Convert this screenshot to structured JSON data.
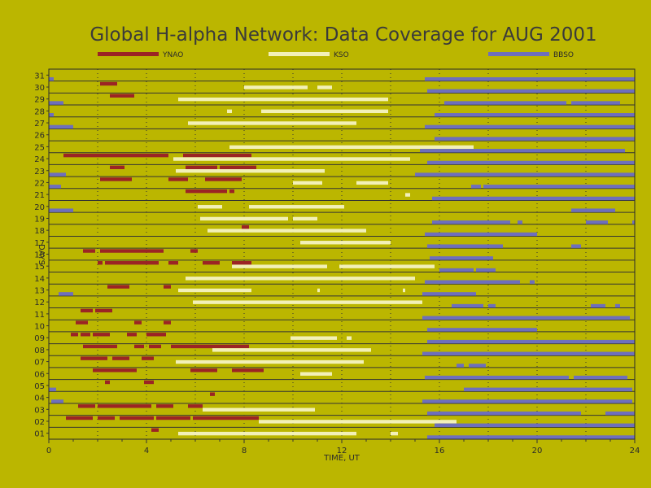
{
  "chart_data": {
    "type": "bar",
    "title": "Global H-alpha Network: Data Coverage for AUG 2001",
    "xlabel": "TIME, UT",
    "ylabel": "DAYS",
    "xlim": [
      0,
      24
    ],
    "ylim": [
      1,
      31
    ],
    "x_ticks": [
      0,
      4,
      8,
      12,
      16,
      20,
      24
    ],
    "y_ticks": [
      "01",
      "02",
      "03",
      "04",
      "05",
      "06",
      "07",
      "08",
      "09",
      "10",
      "11",
      "12",
      "13",
      "14",
      "15",
      "16",
      "17",
      "18",
      "19",
      "20",
      "21",
      "22",
      "23",
      "24",
      "25",
      "26",
      "27",
      "28",
      "29",
      "30",
      "31"
    ],
    "grid": true,
    "legend_position": "top",
    "series": [
      {
        "name": "YNAO",
        "color": "#9b2424",
        "intervals": {
          "01": [
            [
              4.2,
              4.5
            ]
          ],
          "02": [
            [
              0.7,
              1.0
            ],
            [
              1.0,
              1.8
            ],
            [
              2.0,
              2.7
            ],
            [
              2.9,
              4.3
            ],
            [
              4.4,
              5.8
            ],
            [
              5.9,
              8.6
            ]
          ],
          "03": [
            [
              1.2,
              1.9
            ],
            [
              2.0,
              4.2
            ],
            [
              4.4,
              5.1
            ],
            [
              5.7,
              6.3
            ]
          ],
          "04": [
            [
              6.6,
              6.8
            ]
          ],
          "05": [
            [
              2.3,
              2.5
            ],
            [
              3.9,
              4.3
            ]
          ],
          "06": [
            [
              1.8,
              3.6
            ],
            [
              5.8,
              6.9
            ],
            [
              7.5,
              8.8
            ]
          ],
          "07": [
            [
              1.3,
              2.4
            ],
            [
              2.6,
              3.3
            ],
            [
              3.8,
              4.3
            ]
          ],
          "08": [
            [
              1.4,
              2.8
            ],
            [
              3.5,
              3.9
            ],
            [
              4.1,
              4.6
            ],
            [
              5.0,
              8.2
            ]
          ],
          "09": [
            [
              0.9,
              1.2
            ],
            [
              1.3,
              1.7
            ],
            [
              1.8,
              2.5
            ],
            [
              3.2,
              3.6
            ],
            [
              4.0,
              4.8
            ]
          ],
          "10": [
            [
              1.1,
              1.6
            ],
            [
              3.5,
              3.8
            ],
            [
              4.7,
              5.0
            ]
          ],
          "11": [
            [
              1.3,
              1.8
            ],
            [
              1.9,
              2.6
            ]
          ],
          "13": [
            [
              2.4,
              3.3
            ],
            [
              4.7,
              5.0
            ]
          ],
          "15": [
            [
              2.0,
              2.2
            ],
            [
              2.3,
              4.5
            ],
            [
              4.9,
              5.3
            ],
            [
              6.3,
              7.0
            ],
            [
              7.5,
              8.3
            ]
          ],
          "16": [
            [
              1.4,
              1.9
            ],
            [
              2.1,
              4.7
            ],
            [
              5.8,
              6.1
            ]
          ],
          "18": [
            [
              7.9,
              8.2
            ]
          ],
          "21": [
            [
              5.6,
              7.3
            ],
            [
              7.4,
              7.6
            ]
          ],
          "22": [
            [
              2.1,
              3.4
            ],
            [
              4.9,
              5.7
            ],
            [
              6.4,
              7.9
            ]
          ],
          "23": [
            [
              2.5,
              3.1
            ],
            [
              5.6,
              6.9
            ],
            [
              7.0,
              8.5
            ]
          ],
          "24": [
            [
              0.6,
              4.9
            ],
            [
              5.5,
              8.3
            ]
          ],
          "29": [
            [
              2.5,
              3.5
            ]
          ],
          "30": [
            [
              2.1,
              2.8
            ]
          ]
        }
      },
      {
        "name": "KSO",
        "color": "#f2f0b8",
        "intervals": {
          "01": [
            [
              5.3,
              12.6
            ],
            [
              14.0,
              14.3
            ]
          ],
          "02": [
            [
              8.6,
              16.7
            ]
          ],
          "03": [
            [
              6.3,
              10.9
            ]
          ],
          "06": [
            [
              10.3,
              11.6
            ]
          ],
          "07": [
            [
              5.2,
              12.9
            ]
          ],
          "08": [
            [
              6.7,
              13.2
            ]
          ],
          "09": [
            [
              9.9,
              11.8
            ],
            [
              12.2,
              12.4
            ]
          ],
          "12": [
            [
              5.9,
              15.3
            ]
          ],
          "13": [
            [
              5.3,
              8.3
            ],
            [
              11.0,
              11.1
            ],
            [
              14.5,
              14.6
            ]
          ],
          "14": [
            [
              5.6,
              15.0
            ]
          ],
          "15": [
            [
              7.5,
              11.4
            ],
            [
              11.9,
              15.8
            ]
          ],
          "17": [
            [
              10.3,
              14.0
            ]
          ],
          "18": [
            [
              6.5,
              13.0
            ]
          ],
          "19": [
            [
              6.2,
              9.8
            ],
            [
              10.0,
              11.0
            ]
          ],
          "20": [
            [
              6.1,
              7.1
            ],
            [
              8.2,
              12.1
            ]
          ],
          "21": [
            [
              14.6,
              14.8
            ]
          ],
          "22": [
            [
              10.0,
              11.2
            ],
            [
              12.6,
              13.9
            ]
          ],
          "23": [
            [
              5.2,
              11.3
            ]
          ],
          "24": [
            [
              5.1,
              14.8
            ]
          ],
          "25": [
            [
              7.4,
              17.4
            ]
          ],
          "27": [
            [
              5.7,
              12.6
            ]
          ],
          "28": [
            [
              7.3,
              7.5
            ],
            [
              8.7,
              13.9
            ]
          ],
          "29": [
            [
              5.3,
              13.9
            ]
          ],
          "30": [
            [
              8.0,
              10.6
            ],
            [
              11.0,
              11.6
            ]
          ]
        }
      },
      {
        "name": "BBSO",
        "color": "#6e6fbc",
        "intervals": {
          "01": [
            [
              15.5,
              24.0
            ]
          ],
          "02": [
            [
              15.8,
              24.0
            ]
          ],
          "03": [
            [
              15.5,
              21.8
            ],
            [
              22.8,
              24.0
            ]
          ],
          "04": [
            [
              0.1,
              0.6
            ],
            [
              15.3,
              23.9
            ]
          ],
          "05": [
            [
              0.0,
              0.3
            ],
            [
              17.0,
              23.9
            ]
          ],
          "06": [
            [
              15.4,
              21.3
            ],
            [
              21.5,
              23.7
            ]
          ],
          "07": [
            [
              16.7,
              17.0
            ],
            [
              17.2,
              17.9
            ]
          ],
          "08": [
            [
              15.3,
              24.0
            ]
          ],
          "09": [
            [
              15.5,
              24.0
            ]
          ],
          "10": [
            [
              15.5,
              20.0
            ]
          ],
          "11": [
            [
              15.3,
              23.8
            ]
          ],
          "12": [
            [
              16.5,
              17.8
            ],
            [
              18.0,
              18.3
            ],
            [
              22.2,
              22.8
            ],
            [
              23.2,
              23.4
            ]
          ],
          "13": [
            [
              0.4,
              1.0
            ],
            [
              15.3,
              17.5
            ]
          ],
          "14": [
            [
              15.4,
              19.3
            ],
            [
              19.7,
              19.9
            ]
          ],
          "15": [
            [
              16.0,
              17.4
            ],
            [
              17.5,
              18.3
            ]
          ],
          "16": [
            [
              15.6,
              18.2
            ]
          ],
          "17": [
            [
              15.5,
              18.6
            ],
            [
              21.4,
              21.8
            ]
          ],
          "18": [
            [
              15.4,
              20.0
            ]
          ],
          "19": [
            [
              15.7,
              18.9
            ],
            [
              19.2,
              19.4
            ],
            [
              22.0,
              22.9
            ],
            [
              23.9,
              24.0
            ]
          ],
          "20": [
            [
              0.0,
              1.0
            ],
            [
              21.4,
              23.2
            ]
          ],
          "21": [
            [
              15.7,
              24.0
            ]
          ],
          "22": [
            [
              0.0,
              0.5
            ],
            [
              17.3,
              17.7
            ],
            [
              17.8,
              24.0
            ]
          ],
          "23": [
            [
              0.0,
              0.7
            ],
            [
              15.0,
              24.0
            ]
          ],
          "24": [
            [
              15.5,
              24.0
            ]
          ],
          "25": [
            [
              15.2,
              23.6
            ]
          ],
          "26": [
            [
              15.8,
              24.0
            ]
          ],
          "27": [
            [
              0.0,
              1.0
            ],
            [
              15.4,
              24.0
            ]
          ],
          "28": [
            [
              0.0,
              0.2
            ],
            [
              15.8,
              24.0
            ]
          ],
          "29": [
            [
              0.0,
              0.6
            ],
            [
              16.2,
              21.2
            ],
            [
              21.4,
              23.4
            ]
          ],
          "30": [
            [
              15.5,
              24.0
            ]
          ],
          "31": [
            [
              0.0,
              0.2
            ],
            [
              15.4,
              24.0
            ]
          ]
        }
      }
    ]
  }
}
